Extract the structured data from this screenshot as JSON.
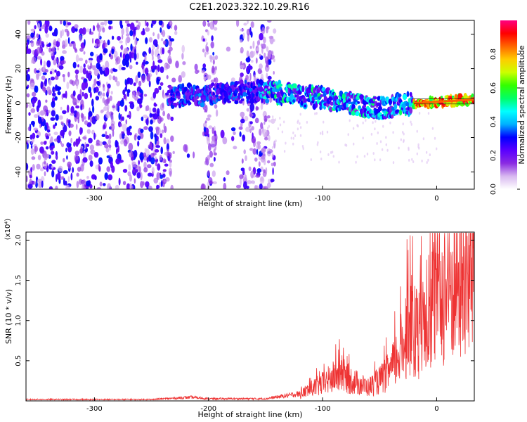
{
  "figure": {
    "title": "C2E1.2023.322.10.29.R16"
  },
  "chart_data": [
    {
      "type": "heatmap",
      "title": "",
      "xlabel": "Height of straight line (km)",
      "ylabel": "Frequency (Hz)",
      "xlim": [
        -360,
        33
      ],
      "ylim": [
        -50,
        48
      ],
      "x_ticks": [
        -300,
        -200,
        -100,
        0
      ],
      "y_ticks": [
        -40,
        -20,
        0,
        20,
        40
      ],
      "colorbar": {
        "label": "Normalized spectral amplitude",
        "range": [
          0.0,
          1.0
        ],
        "ticks": [
          0.0,
          0.2,
          0.4,
          0.6,
          0.8
        ],
        "colors": [
          "#ffffff",
          "#d8b8f0",
          "#8a2be2",
          "#5a00ff",
          "#0000ff",
          "#00b0ff",
          "#00ffff",
          "#00ff66",
          "#33ff00",
          "#ccff00",
          "#ffcc00",
          "#ff6600",
          "#ff0000",
          "#ff0080"
        ]
      },
      "features": {
        "noise_region_x": [
          -360,
          -150
        ],
        "noise_gaps_x": [
          [
            -232,
            -205
          ],
          [
            -192,
            -172
          ]
        ],
        "signal_band": [
          {
            "x": -235,
            "y": 4
          },
          {
            "x": -150,
            "y": 7
          },
          {
            "x": -100,
            "y": 3
          },
          {
            "x": -50,
            "y": -3
          },
          {
            "x": -20,
            "y": 0
          },
          {
            "x": 33,
            "y": 2
          }
        ]
      }
    },
    {
      "type": "line",
      "title": "",
      "xlabel": "Height of straight line (km)",
      "ylabel": "SNR (10 * v/v)",
      "y_multiplier": "(x10⁴)",
      "xlim": [
        -360,
        33
      ],
      "ylim": [
        0,
        2.1
      ],
      "x_ticks": [
        -300,
        -200,
        -100,
        0
      ],
      "y_ticks": [
        0.5,
        1.0,
        1.5,
        2.0
      ],
      "y_tick_labels": [
        "0.5",
        "1.0",
        "1.5",
        "2.0"
      ],
      "color": "#ee3333",
      "series": [
        {
          "x": [
            -360,
            -300,
            -250,
            -215,
            -200,
            -150,
            -120,
            -100,
            -85,
            -75,
            -60,
            -50,
            -40,
            -30,
            -25,
            -20,
            -15,
            -10,
            0,
            10,
            20,
            33
          ],
          "y": [
            0.02,
            0.02,
            0.02,
            0.05,
            0.03,
            0.03,
            0.1,
            0.25,
            0.4,
            0.3,
            0.2,
            0.3,
            0.45,
            0.8,
            1.2,
            1.0,
            1.0,
            1.35,
            1.5,
            1.6,
            1.75,
            1.85
          ]
        }
      ]
    }
  ]
}
